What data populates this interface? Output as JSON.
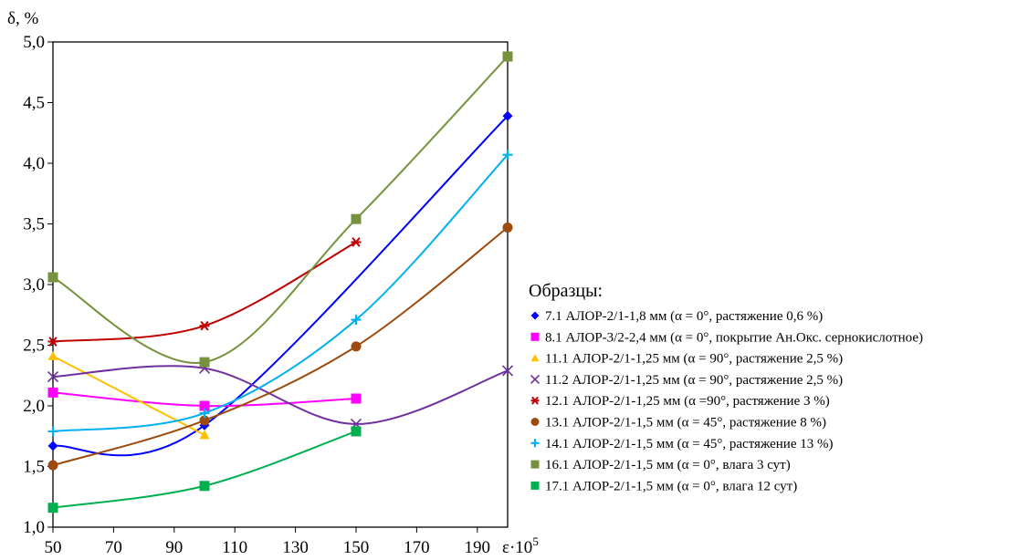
{
  "chart_data": {
    "type": "line",
    "ylabel": "δ, %",
    "xlabel": "ε·10",
    "xlabel_sup": "5",
    "xlim": [
      50,
      200
    ],
    "ylim": [
      1.0,
      5.0
    ],
    "x_ticks": [
      "50",
      "70",
      "90",
      "110",
      "130",
      "150",
      "170",
      "190"
    ],
    "x_tick_values": [
      50,
      70,
      90,
      110,
      130,
      150,
      170,
      190
    ],
    "y_ticks": [
      "1,0",
      "1,5",
      "2,0",
      "2,5",
      "3,0",
      "3,5",
      "4,0",
      "4,5",
      "5,0"
    ],
    "y_tick_values": [
      1.0,
      1.5,
      2.0,
      2.5,
      3.0,
      3.5,
      4.0,
      4.5,
      5.0
    ],
    "grid": false,
    "legend_title": "Образцы:",
    "legend_position": "right",
    "series": [
      {
        "name": "7.1 АЛОР-2/1-1,8 мм (α = 0°, растяжение 0,6 %)",
        "color": "#0000FF",
        "marker": "diamond",
        "points": [
          [
            50,
            1.67
          ],
          [
            100,
            1.84
          ],
          [
            200,
            4.39
          ]
        ]
      },
      {
        "name": "8.1 АЛОР-3/2-2,4 мм (α = 0°, покрытие Ан.Окс. сернокислотное)",
        "color": "#FF00FF",
        "marker": "square",
        "points": [
          [
            50,
            2.11
          ],
          [
            100,
            2.0
          ],
          [
            150,
            2.06
          ]
        ]
      },
      {
        "name": "11.1 АЛОР-2/1-1,25 мм (α = 90°, растяжение 2,5 %)",
        "color": "#FFC000",
        "marker": "triangle",
        "points": [
          [
            50,
            2.41
          ],
          [
            100,
            1.76
          ]
        ]
      },
      {
        "name": "11.2 АЛОР-2/1-1,25 мм (α = 90°, растяжение 2,5 %)",
        "color": "#7030A0",
        "marker": "x",
        "points": [
          [
            50,
            2.24
          ],
          [
            100,
            2.31
          ],
          [
            150,
            1.85
          ],
          [
            200,
            2.29
          ]
        ]
      },
      {
        "name": "12.1 АЛОР-2/1-1,25 мм (α =90°, растяжение 3 %)",
        "color": "#C00000",
        "marker": "asterisk",
        "points": [
          [
            50,
            2.53
          ],
          [
            100,
            2.66
          ],
          [
            150,
            3.35
          ]
        ]
      },
      {
        "name": "13.1 АЛОР-2/1-1,5 мм (α = 45°, растяжение 8 %)",
        "color": "#9C4A0E",
        "marker": "circle",
        "points": [
          [
            50,
            1.51
          ],
          [
            100,
            1.88
          ],
          [
            150,
            2.49
          ],
          [
            200,
            3.47
          ]
        ]
      },
      {
        "name": "14.1 АЛОР-2/1-1,5 мм (α = 45°, растяжение 13 %)",
        "color": "#00B0F0",
        "marker": "plus",
        "points": [
          [
            50,
            1.79
          ],
          [
            100,
            1.94
          ],
          [
            150,
            2.71
          ],
          [
            200,
            4.07
          ]
        ]
      },
      {
        "name": "16.1 АЛОР-2/1-1,5 мм (α = 0°, влага 3 сут)",
        "color": "#76923C",
        "marker": "square",
        "points": [
          [
            50,
            3.06
          ],
          [
            100,
            2.36
          ],
          [
            150,
            3.54
          ],
          [
            200,
            4.88
          ]
        ]
      },
      {
        "name": "17.1 АЛОР-2/1-1,5 мм (α = 0°, влага 12 сут)",
        "color": "#00B050",
        "marker": "square",
        "points": [
          [
            50,
            1.16
          ],
          [
            100,
            1.34
          ],
          [
            150,
            1.79
          ]
        ]
      }
    ]
  }
}
